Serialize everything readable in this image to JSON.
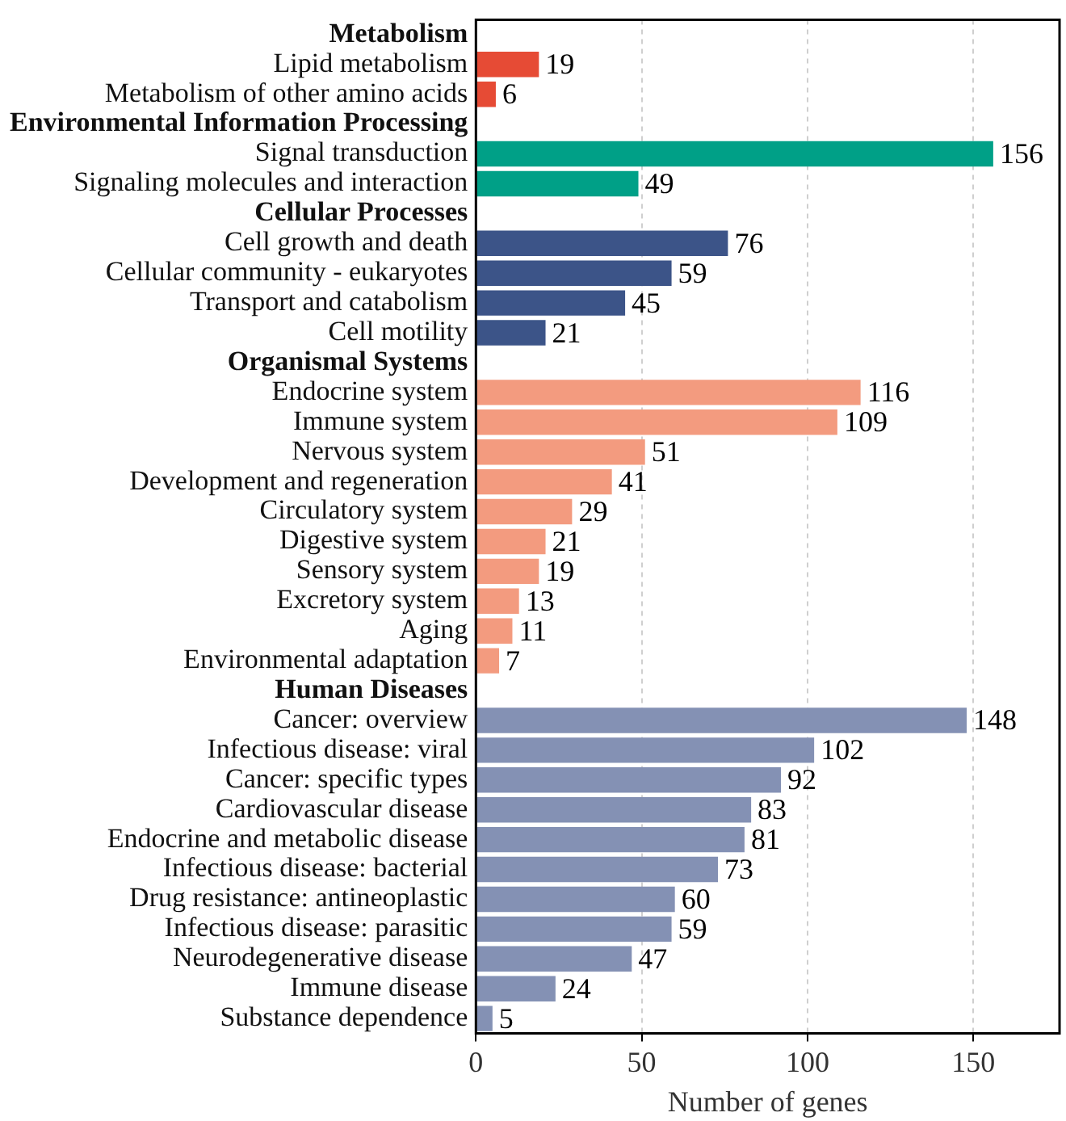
{
  "chart_data": {
    "type": "bar",
    "orientation": "horizontal",
    "xlabel": "Number of genes",
    "categories": [
      "Metabolism",
      "Lipid metabolism",
      "Metabolism of other amino acids",
      "Environmental Information Processing",
      "Signal transduction",
      "Signaling molecules and interaction",
      "Cellular Processes",
      "Cell growth and death",
      "Cellular community - eukaryotes",
      "Transport and catabolism",
      "Cell motility",
      "Organismal Systems",
      "Endocrine system",
      "Immune system",
      "Nervous system",
      "Development and regeneration",
      "Circulatory system",
      "Digestive system",
      "Sensory system",
      "Excretory system",
      "Aging",
      "Environmental adaptation",
      "Human Diseases",
      "Cancer: overview",
      "Infectious disease: viral",
      "Cancer: specific types",
      "Cardiovascular disease",
      "Endocrine and metabolic disease",
      "Infectious disease: bacterial",
      "Drug resistance: antineoplastic",
      "Infectious disease: parasitic",
      "Neurodegenerative disease",
      "Immune disease",
      "Substance dependence"
    ],
    "values": [
      null,
      19,
      6,
      null,
      156,
      49,
      null,
      76,
      59,
      45,
      21,
      null,
      116,
      109,
      51,
      41,
      29,
      21,
      19,
      13,
      11,
      7,
      null,
      148,
      102,
      92,
      83,
      81,
      73,
      60,
      59,
      47,
      24,
      5
    ],
    "colors": [
      null,
      "#e64b35",
      "#e64b35",
      null,
      "#00a087",
      "#00a087",
      null,
      "#3c5488",
      "#3c5488",
      "#3c5488",
      "#3c5488",
      null,
      "#f39b7f",
      "#f39b7f",
      "#f39b7f",
      "#f39b7f",
      "#f39b7f",
      "#f39b7f",
      "#f39b7f",
      "#f39b7f",
      "#f39b7f",
      "#f39b7f",
      null,
      "#8491b4",
      "#8491b4",
      "#8491b4",
      "#8491b4",
      "#8491b4",
      "#8491b4",
      "#8491b4",
      "#8491b4",
      "#8491b4",
      "#8491b4",
      "#8491b4"
    ],
    "xlim": [
      0,
      176
    ],
    "xticks": [
      0,
      50,
      100,
      150
    ],
    "grid": "x",
    "data_labels": true,
    "legend": false
  }
}
